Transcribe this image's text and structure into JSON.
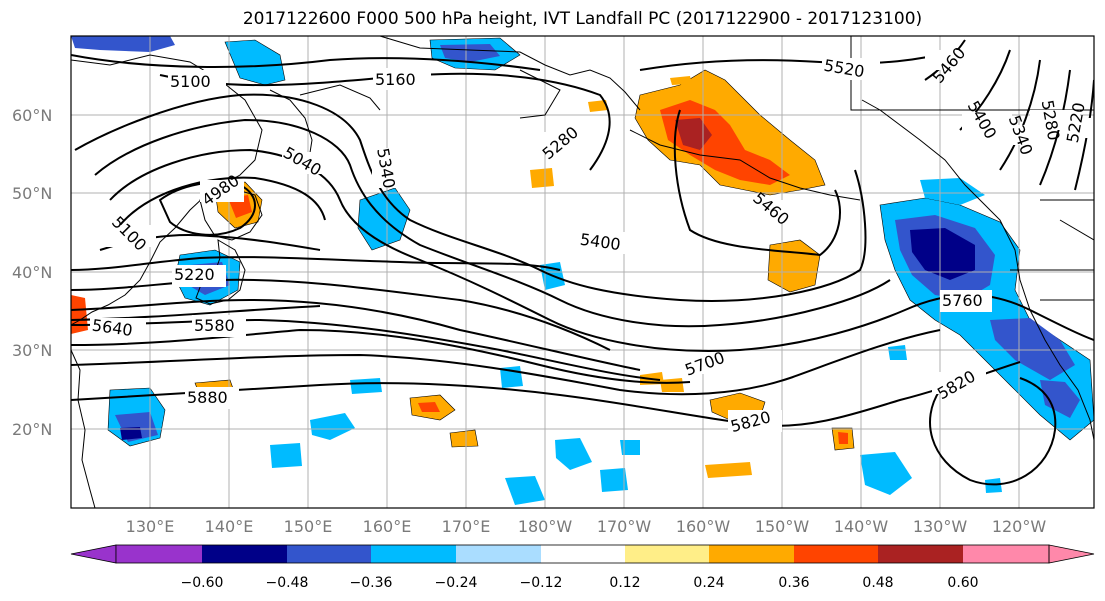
{
  "title": "2017122600 F000 500 hPa height, IVT Landfall PC (2017122900 - 2017123100)",
  "map": {
    "lat_labels": [
      "60°N",
      "50°N",
      "40°N",
      "30°N",
      "20°N"
    ],
    "lon_labels": [
      "130°E",
      "140°E",
      "150°E",
      "160°E",
      "170°E",
      "180°W",
      "170°W",
      "160°W",
      "150°W",
      "140°W",
      "130°W",
      "120°W"
    ],
    "contour_labels": [
      "5100",
      "5160",
      "5520",
      "5460",
      "5400",
      "5340",
      "5280",
      "5220",
      "5040",
      "4980",
      "5100",
      "5340",
      "5280",
      "5400",
      "5460",
      "5220",
      "5640",
      "5580",
      "5700",
      "5760",
      "5880",
      "5820",
      "5820"
    ]
  },
  "colorbar": {
    "colors": [
      "#9933cc",
      "#000088",
      "#3355cc",
      "#00bbff",
      "#aaddff",
      "#ffffff",
      "#ffee88",
      "#ffaa00",
      "#ff4400",
      "#aa2222",
      "#ff88aa"
    ],
    "ticks": [
      "−0.60",
      "−0.48",
      "−0.36",
      "−0.24",
      "−0.12",
      "0.12",
      "0.24",
      "0.36",
      "0.48",
      "0.60"
    ]
  }
}
